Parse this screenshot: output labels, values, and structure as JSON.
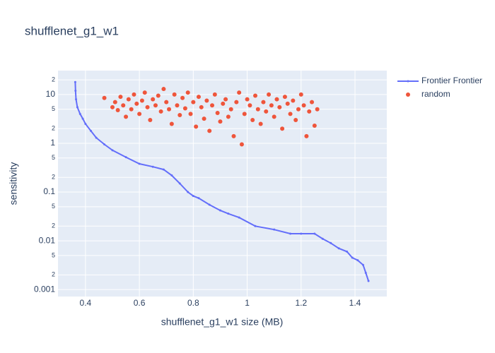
{
  "chart_data": {
    "type": "scatter",
    "title": "shufflenet_g1_w1",
    "x_label": "shufflenet_g1_w1 size (MB)",
    "y_label": "sensitivity",
    "xlim": [
      0.298,
      1.518
    ],
    "xticks": [
      0.4,
      0.6,
      0.8,
      1,
      1.2,
      1.4
    ],
    "ylim": [
      0.00072,
      31
    ],
    "y_scale": "log",
    "yticks": [
      0.001,
      {
        "value": 0.002,
        "label": "2"
      },
      {
        "value": 0.005,
        "label": "5"
      },
      0.01,
      {
        "value": 0.02,
        "label": "2"
      },
      {
        "value": 0.05,
        "label": "5"
      },
      0.1,
      {
        "value": 0.2,
        "label": "2"
      },
      {
        "value": 0.5,
        "label": "5"
      },
      1,
      {
        "value": 2,
        "label": "2"
      },
      {
        "value": 5,
        "label": "5"
      },
      10,
      {
        "value": 20,
        "label": "2"
      }
    ],
    "grid": true,
    "series": [
      {
        "name": "Frontier Frontier",
        "color": "#636efa",
        "mode": "lines+markers",
        "x": [
          0.362,
          0.363,
          0.365,
          0.37,
          0.38,
          0.39,
          0.4,
          0.42,
          0.44,
          0.47,
          0.5,
          0.55,
          0.6,
          0.65,
          0.69,
          0.72,
          0.75,
          0.78,
          0.8,
          0.82,
          0.86,
          0.9,
          0.93,
          0.97,
          1.03,
          1.1,
          1.16,
          1.2,
          1.25,
          1.28,
          1.31,
          1.34,
          1.37,
          1.39,
          1.41,
          1.43,
          1.44,
          1.45
        ],
        "values": [
          18,
          12,
          8,
          5.5,
          4,
          3.2,
          2.5,
          1.8,
          1.3,
          0.95,
          0.72,
          0.52,
          0.38,
          0.33,
          0.29,
          0.22,
          0.15,
          0.1,
          0.083,
          0.075,
          0.055,
          0.042,
          0.036,
          0.03,
          0.02,
          0.017,
          0.014,
          0.014,
          0.014,
          0.011,
          0.009,
          0.007,
          0.006,
          0.0045,
          0.004,
          0.0032,
          0.0022,
          0.0015
        ]
      },
      {
        "name": "random",
        "color": "#ef553b",
        "mode": "markers",
        "x": [
          0.47,
          0.5,
          0.51,
          0.52,
          0.53,
          0.54,
          0.55,
          0.56,
          0.57,
          0.58,
          0.59,
          0.6,
          0.61,
          0.62,
          0.63,
          0.64,
          0.65,
          0.66,
          0.67,
          0.68,
          0.69,
          0.7,
          0.71,
          0.72,
          0.73,
          0.74,
          0.75,
          0.76,
          0.77,
          0.78,
          0.79,
          0.8,
          0.81,
          0.82,
          0.83,
          0.84,
          0.85,
          0.86,
          0.87,
          0.88,
          0.89,
          0.9,
          0.91,
          0.92,
          0.93,
          0.94,
          0.95,
          0.96,
          0.97,
          0.98,
          0.99,
          1.0,
          1.01,
          1.02,
          1.03,
          1.04,
          1.05,
          1.06,
          1.07,
          1.08,
          1.09,
          1.1,
          1.11,
          1.12,
          1.13,
          1.14,
          1.15,
          1.16,
          1.17,
          1.18,
          1.19,
          1.2,
          1.21,
          1.22,
          1.23,
          1.24,
          1.25,
          1.26
        ],
        "values": [
          8.5,
          5.5,
          7,
          4.8,
          9,
          6,
          3.5,
          8,
          5,
          10,
          6.5,
          4,
          7.5,
          11,
          5.5,
          3,
          8,
          6,
          9.5,
          4.5,
          13,
          7,
          5,
          2.5,
          10,
          6,
          3.8,
          8.5,
          5.2,
          11,
          4,
          7,
          2.2,
          9,
          5.5,
          3.2,
          7.5,
          1.8,
          6,
          10,
          4.2,
          2.8,
          6.5,
          8,
          3.5,
          5,
          1.4,
          7,
          11,
          0.95,
          4,
          8,
          6,
          3,
          9.5,
          5,
          2.5,
          7,
          4.5,
          10,
          6,
          3.5,
          8,
          5.5,
          2,
          9,
          6.5,
          4,
          7.5,
          3,
          5,
          10,
          6,
          1.4,
          4.5,
          7,
          2.3,
          5
        ]
      }
    ]
  }
}
